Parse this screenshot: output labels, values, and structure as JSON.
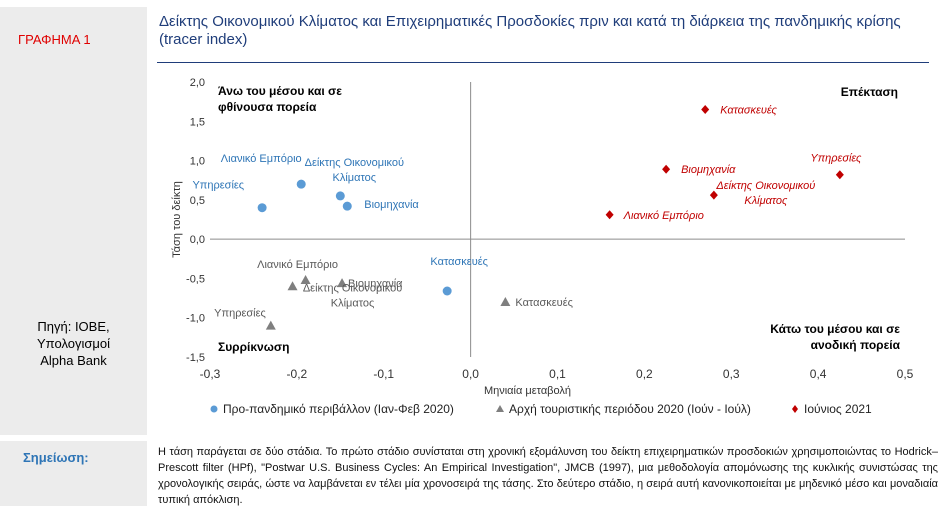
{
  "sidebar": {
    "chart_label": "ΓΡΑΦΗΜΑ 1",
    "source": [
      "Πηγή: ΙΟΒΕ,",
      "Υπολογισμοί",
      "Alpha Bank"
    ]
  },
  "note": {
    "label": "Σημείωση:",
    "text": "Η τάση παράγεται σε δύο στάδια. Το πρώτο στάδιο συνίσταται στη χρονική εξομάλυνση του δείκτη επιχειρηματικών προσδοκιών χρησιμοποιώντας το Hodrick–Prescott filter (HPf), \"Postwar U.S. Business Cycles: An Empirical Investigation\", JMCB (1997), μια μεθοδολογία απομόνωσης της κυκλικής συνιστώσας της χρονολογικής σειράς, ώστε να λαμβάνεται εν τέλει μία χρονοσειρά της τάσης. Στο δεύτερο στάδιο, η σειρά αυτή κανονικοποιείται με μηδενικό μέσο και μοναδιαία τυπική απόκλιση."
  },
  "chart_data": {
    "type": "scatter",
    "title": "Δείκτης Οικονομικού Κλίματος και Επιχειρηματικές Προσδοκίες πριν και κατά τη διάρκεια της πανδημικής κρίσης (tracer index)",
    "xlabel": "Μηνιαία μεταβολή",
    "ylabel": "Τάση του δείκτη",
    "xlim": [
      -0.3,
      0.5
    ],
    "ylim": [
      -1.5,
      2.0
    ],
    "xticks": [
      "-0,3",
      "-0,2",
      "-0,1",
      "0,0",
      "0,1",
      "0,2",
      "0,3",
      "0,4",
      "0,5"
    ],
    "yticks": [
      "2,0",
      "1,5",
      "1,0",
      "0,5",
      "0,0",
      "-0,5",
      "-1,0",
      "-1,5"
    ],
    "quadrant_labels": {
      "top_left": [
        "Άνω του μέσου και σε",
        "φθίνουσα πορεία"
      ],
      "top_right": [
        "Επέκταση"
      ],
      "bottom_left": [
        "Συρρίκνωση"
      ],
      "bottom_right": [
        "Κάτω του μέσου και σε",
        "ανοδική πορεία"
      ]
    },
    "legend_position": "bottom",
    "series": [
      {
        "name": "Προ-πανδημικό περιβάλλον (Ιαν-Φεβ 2020)",
        "marker": "circle",
        "color": "#5b9bd5",
        "label_color": "#2e75b6",
        "points": [
          {
            "label": [
              "Λιανικό Εμπόριο"
            ],
            "x": -0.195,
            "y": 0.7
          },
          {
            "label": [
              "Υπηρεσίες"
            ],
            "x": -0.24,
            "y": 0.4
          },
          {
            "label": [
              "Δείκτης Οικονομικού",
              "Κλίματος"
            ],
            "x": -0.15,
            "y": 0.55
          },
          {
            "label": [
              "Βιομηχανία"
            ],
            "x": -0.142,
            "y": 0.42
          },
          {
            "label": [
              "Κατασκευές"
            ],
            "x": -0.027,
            "y": -0.66
          }
        ]
      },
      {
        "name": "Αρχή τουριστικής περιόδου 2020 (Ιούν - Ιούλ)",
        "marker": "triangle",
        "color": "#7f7f7f",
        "label_color": "#595959",
        "points": [
          {
            "label": [
              "Λιανικό Εμπόριο"
            ],
            "x": -0.19,
            "y": -0.52
          },
          {
            "label": [
              "Βιομηχανία"
            ],
            "x": -0.148,
            "y": -0.56
          },
          {
            "label": [
              "Δείκτης Οικονομικού",
              "Κλίματος"
            ],
            "x": -0.205,
            "y": -0.6
          },
          {
            "label": [
              "Υπηρεσίες"
            ],
            "x": -0.23,
            "y": -1.1
          },
          {
            "label": [
              "Κατασκευές"
            ],
            "x": 0.04,
            "y": -0.8
          }
        ]
      },
      {
        "name": "Ιούνιος 2021",
        "marker": "diamond",
        "color": "#c00000",
        "label_color": "#c00000",
        "points": [
          {
            "label": [
              "Κατασκευές"
            ],
            "x": 0.27,
            "y": 1.65
          },
          {
            "label": [
              "Υπηρεσίες"
            ],
            "x": 0.425,
            "y": 0.82
          },
          {
            "label": [
              "Βιομηχανία"
            ],
            "x": 0.225,
            "y": 0.89
          },
          {
            "label": [
              "Δείκτης Οικονομικού",
              "Κλίματος"
            ],
            "x": 0.28,
            "y": 0.56
          },
          {
            "label": [
              "Λιανικό Εμπόριο"
            ],
            "x": 0.16,
            "y": 0.31
          }
        ]
      }
    ]
  }
}
